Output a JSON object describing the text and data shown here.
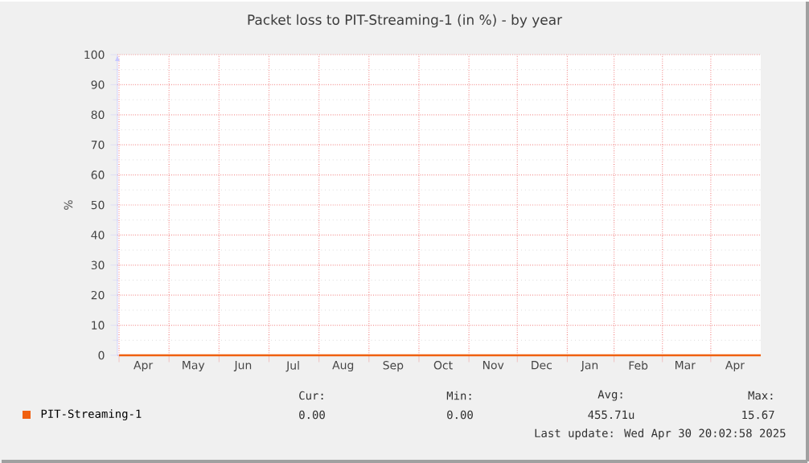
{
  "chart_data": {
    "type": "line",
    "title": "Packet loss to PIT-Streaming-1 (in %) - by year",
    "ylabel": "%",
    "series": [
      {
        "name": "PIT-Streaming-1",
        "color": "#f06010",
        "x": [
          "2024-03-28",
          "2025-04-30"
        ],
        "values": [
          0,
          0
        ]
      }
    ],
    "xlim": [
      "2024-03-27",
      "2025-04-30"
    ],
    "xticks": [
      {
        "value": "2024-03-28",
        "label": null
      },
      {
        "value": "2024-04-28",
        "label": null
      },
      {
        "value": "2024-05-29",
        "label": null
      },
      {
        "value": "2024-06-29",
        "label": null
      },
      {
        "value": "2024-07-30",
        "label": null
      },
      {
        "value": "2024-08-30",
        "label": null
      },
      {
        "value": "2024-09-30",
        "label": null
      },
      {
        "value": "2024-10-31",
        "label": null
      },
      {
        "value": "2024-11-30",
        "label": null
      },
      {
        "value": "2024-12-31",
        "label": null
      },
      {
        "value": "2025-01-29",
        "label": null
      },
      {
        "value": "2025-02-28",
        "label": null
      },
      {
        "value": "2025-03-30",
        "label": null
      },
      {
        "value": "2024-04-12",
        "label": "Apr"
      },
      {
        "value": "2024-05-13",
        "label": "May"
      },
      {
        "value": "2024-06-13",
        "label": "Jun"
      },
      {
        "value": "2024-07-14",
        "label": "Jul"
      },
      {
        "value": "2024-08-14",
        "label": "Aug"
      },
      {
        "value": "2024-09-14",
        "label": "Sep"
      },
      {
        "value": "2024-10-15",
        "label": "Oct"
      },
      {
        "value": "2024-11-15",
        "label": "Nov"
      },
      {
        "value": "2024-12-15",
        "label": "Dec"
      },
      {
        "value": "2025-01-14",
        "label": "Jan"
      },
      {
        "value": "2025-02-13",
        "label": "Feb"
      },
      {
        "value": "2025-03-14",
        "label": "Mar"
      },
      {
        "value": "2025-04-14",
        "label": "Apr"
      }
    ],
    "ylim": [
      0,
      100
    ],
    "yticks": [
      0,
      10,
      20,
      30,
      40,
      50,
      60,
      70,
      80,
      90,
      100
    ],
    "grid": true,
    "legend": "bottom",
    "annotations": [
      "Cur:",
      "Min:",
      "Avg:",
      "Max:",
      "0.00",
      "0.00",
      "455.71u",
      "15.67",
      "Last update: Wed Apr 30 20:02:58 2025"
    ]
  }
}
